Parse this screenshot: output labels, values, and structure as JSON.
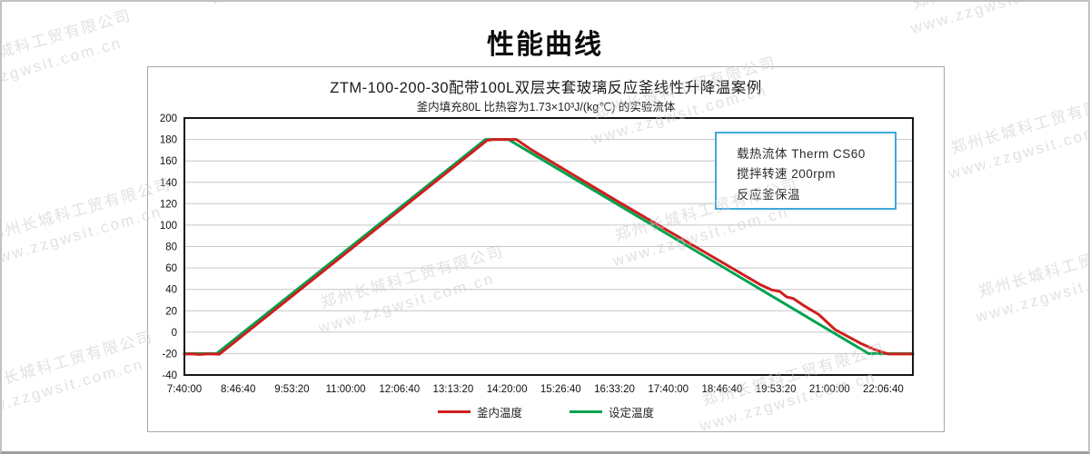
{
  "page": {
    "title": "性能曲线"
  },
  "watermark": {
    "line1": "郑州长城科工贸有限公司",
    "line2": "www.zzgwsit.com.cn",
    "color": "#c9c9c9",
    "tiles": [
      [
        -62,
        60
      ],
      [
        230,
        -42
      ],
      [
        1000,
        -10
      ],
      [
        648,
        112
      ],
      [
        1042,
        150
      ],
      [
        -18,
        246
      ],
      [
        348,
        320
      ],
      [
        672,
        246
      ],
      [
        1072,
        308
      ],
      [
        -38,
        414
      ],
      [
        768,
        428
      ]
    ]
  },
  "chart": {
    "title": "ZTM-100-200-30配带100L双层夹套玻璃反应釜线性升降温案例",
    "subtitle": "釜内填充80L 比热容为1.73×10³J/(kg℃) 的实验流体",
    "annotation": {
      "border_color": "#3fa9dc",
      "lines": [
        "载热流体 Therm CS60",
        "搅拌转速  200rpm",
        "反应釜保温"
      ]
    }
  },
  "chart_data": {
    "type": "line",
    "title": "ZTM-100-200-30配带100L双层夹套玻璃反应釜线性升降温案例",
    "subtitle": "釜内填充80L 比热容为1.73×10³J/(kg℃) 的实验流体",
    "grid": "horizontal-only",
    "legend_position": "bottom",
    "x_axis": {
      "type": "time",
      "min_seconds": 27600,
      "max_seconds": 81800,
      "tick_labels": [
        "7:40:00",
        "8:46:40",
        "9:53:20",
        "11:00:00",
        "12:06:40",
        "13:13:20",
        "14:20:00",
        "15:26:40",
        "16:33:20",
        "17:40:00",
        "18:46:40",
        "19:53:20",
        "21:00:00",
        "22:06:40"
      ]
    },
    "y_axis": {
      "min": -40,
      "max": 200,
      "step": 20
    },
    "series": [
      {
        "name": "设定温度",
        "color": "#00a24f",
        "points": [
          [
            27600,
            -20
          ],
          [
            30000,
            -20
          ],
          [
            50000,
            180
          ],
          [
            51700,
            180
          ],
          [
            78500,
            -20
          ],
          [
            81800,
            -20
          ]
        ]
      },
      {
        "name": "釜内温度",
        "color": "#cf1f1f",
        "points": [
          [
            27600,
            -20.5
          ],
          [
            28200,
            -20.2
          ],
          [
            28700,
            -20.8
          ],
          [
            29400,
            -20.3
          ],
          [
            30200,
            -20.6
          ],
          [
            50100,
            179
          ],
          [
            50500,
            180
          ],
          [
            52300,
            180
          ],
          [
            52700,
            176.5
          ],
          [
            53400,
            170.5
          ],
          [
            60000,
            121
          ],
          [
            66000,
            77
          ],
          [
            70500,
            44
          ],
          [
            71300,
            39.5
          ],
          [
            71900,
            38
          ],
          [
            72400,
            33
          ],
          [
            72900,
            31.5
          ],
          [
            73600,
            25.5
          ],
          [
            74800,
            16.5
          ],
          [
            76000,
            2.5
          ],
          [
            78000,
            -11
          ],
          [
            79000,
            -16.5
          ],
          [
            79600,
            -19
          ],
          [
            80000,
            -20.4
          ],
          [
            81800,
            -20.4
          ]
        ]
      }
    ],
    "legend_order": [
      "釜内温度",
      "设定温度"
    ]
  }
}
